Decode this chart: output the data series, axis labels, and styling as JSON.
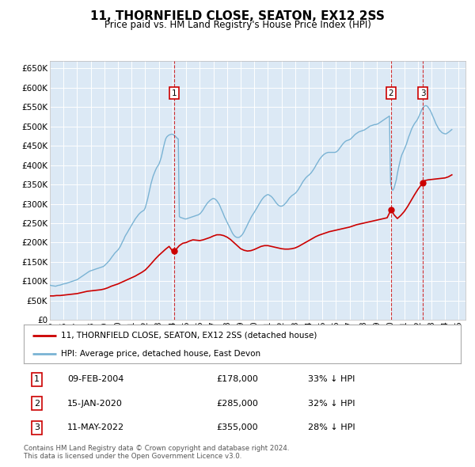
{
  "title": "11, THORNFIELD CLOSE, SEATON, EX12 2SS",
  "subtitle": "Price paid vs. HM Land Registry's House Price Index (HPI)",
  "background_color": "#ffffff",
  "plot_bg_color": "#dce9f5",
  "red_line_label": "11, THORNFIELD CLOSE, SEATON, EX12 2SS (detached house)",
  "blue_line_label": "HPI: Average price, detached house, East Devon",
  "footer": "Contains HM Land Registry data © Crown copyright and database right 2024.\nThis data is licensed under the Open Government Licence v3.0.",
  "transactions": [
    {
      "num": 1,
      "date": "09-FEB-2004",
      "price": "£178,000",
      "pct": "33% ↓ HPI",
      "year_x": 2004.11
    },
    {
      "num": 2,
      "date": "15-JAN-2020",
      "price": "£285,000",
      "pct": "32% ↓ HPI",
      "year_x": 2020.04
    },
    {
      "num": 3,
      "date": "11-MAY-2022",
      "price": "£355,000",
      "pct": "28% ↓ HPI",
      "year_x": 2022.37
    }
  ],
  "hpi_data": {
    "years": [
      1995.0,
      1995.08,
      1995.17,
      1995.25,
      1995.33,
      1995.42,
      1995.5,
      1995.58,
      1995.67,
      1995.75,
      1995.83,
      1995.92,
      1996.0,
      1996.08,
      1996.17,
      1996.25,
      1996.33,
      1996.42,
      1996.5,
      1996.58,
      1996.67,
      1996.75,
      1996.83,
      1996.92,
      1997.0,
      1997.08,
      1997.17,
      1997.25,
      1997.33,
      1997.42,
      1997.5,
      1997.58,
      1997.67,
      1997.75,
      1997.83,
      1997.92,
      1998.0,
      1998.08,
      1998.17,
      1998.25,
      1998.33,
      1998.42,
      1998.5,
      1998.58,
      1998.67,
      1998.75,
      1998.83,
      1998.92,
      1999.0,
      1999.08,
      1999.17,
      1999.25,
      1999.33,
      1999.42,
      1999.5,
      1999.58,
      1999.67,
      1999.75,
      1999.83,
      1999.92,
      2000.0,
      2000.08,
      2000.17,
      2000.25,
      2000.33,
      2000.42,
      2000.5,
      2000.58,
      2000.67,
      2000.75,
      2000.83,
      2000.92,
      2001.0,
      2001.08,
      2001.17,
      2001.25,
      2001.33,
      2001.42,
      2001.5,
      2001.58,
      2001.67,
      2001.75,
      2001.83,
      2001.92,
      2002.0,
      2002.08,
      2002.17,
      2002.25,
      2002.33,
      2002.42,
      2002.5,
      2002.58,
      2002.67,
      2002.75,
      2002.83,
      2002.92,
      2003.0,
      2003.08,
      2003.17,
      2003.25,
      2003.33,
      2003.42,
      2003.5,
      2003.58,
      2003.67,
      2003.75,
      2003.83,
      2003.92,
      2004.0,
      2004.08,
      2004.17,
      2004.25,
      2004.33,
      2004.42,
      2004.5,
      2004.58,
      2004.67,
      2004.75,
      2004.83,
      2004.92,
      2005.0,
      2005.08,
      2005.17,
      2005.25,
      2005.33,
      2005.42,
      2005.5,
      2005.58,
      2005.67,
      2005.75,
      2005.83,
      2005.92,
      2006.0,
      2006.08,
      2006.17,
      2006.25,
      2006.33,
      2006.42,
      2006.5,
      2006.58,
      2006.67,
      2006.75,
      2006.83,
      2006.92,
      2007.0,
      2007.08,
      2007.17,
      2007.25,
      2007.33,
      2007.42,
      2007.5,
      2007.58,
      2007.67,
      2007.75,
      2007.83,
      2007.92,
      2008.0,
      2008.08,
      2008.17,
      2008.25,
      2008.33,
      2008.42,
      2008.5,
      2008.58,
      2008.67,
      2008.75,
      2008.83,
      2008.92,
      2009.0,
      2009.08,
      2009.17,
      2009.25,
      2009.33,
      2009.42,
      2009.5,
      2009.58,
      2009.67,
      2009.75,
      2009.83,
      2009.92,
      2010.0,
      2010.08,
      2010.17,
      2010.25,
      2010.33,
      2010.42,
      2010.5,
      2010.58,
      2010.67,
      2010.75,
      2010.83,
      2010.92,
      2011.0,
      2011.08,
      2011.17,
      2011.25,
      2011.33,
      2011.42,
      2011.5,
      2011.58,
      2011.67,
      2011.75,
      2011.83,
      2011.92,
      2012.0,
      2012.08,
      2012.17,
      2012.25,
      2012.33,
      2012.42,
      2012.5,
      2012.58,
      2012.67,
      2012.75,
      2012.83,
      2012.92,
      2013.0,
      2013.08,
      2013.17,
      2013.25,
      2013.33,
      2013.42,
      2013.5,
      2013.58,
      2013.67,
      2013.75,
      2013.83,
      2013.92,
      2014.0,
      2014.08,
      2014.17,
      2014.25,
      2014.33,
      2014.42,
      2014.5,
      2014.58,
      2014.67,
      2014.75,
      2014.83,
      2014.92,
      2015.0,
      2015.08,
      2015.17,
      2015.25,
      2015.33,
      2015.42,
      2015.5,
      2015.58,
      2015.67,
      2015.75,
      2015.83,
      2015.92,
      2016.0,
      2016.08,
      2016.17,
      2016.25,
      2016.33,
      2016.42,
      2016.5,
      2016.58,
      2016.67,
      2016.75,
      2016.83,
      2016.92,
      2017.0,
      2017.08,
      2017.17,
      2017.25,
      2017.33,
      2017.42,
      2017.5,
      2017.58,
      2017.67,
      2017.75,
      2017.83,
      2017.92,
      2018.0,
      2018.08,
      2018.17,
      2018.25,
      2018.33,
      2018.42,
      2018.5,
      2018.58,
      2018.67,
      2018.75,
      2018.83,
      2018.92,
      2019.0,
      2019.08,
      2019.17,
      2019.25,
      2019.33,
      2019.42,
      2019.5,
      2019.58,
      2019.67,
      2019.75,
      2019.83,
      2019.92,
      2020.0,
      2020.08,
      2020.17,
      2020.25,
      2020.33,
      2020.42,
      2020.5,
      2020.58,
      2020.67,
      2020.75,
      2020.83,
      2020.92,
      2021.0,
      2021.08,
      2021.17,
      2021.25,
      2021.33,
      2021.42,
      2021.5,
      2021.58,
      2021.67,
      2021.75,
      2021.83,
      2021.92,
      2022.0,
      2022.08,
      2022.17,
      2022.25,
      2022.33,
      2022.42,
      2022.5,
      2022.58,
      2022.67,
      2022.75,
      2022.83,
      2022.92,
      2023.0,
      2023.08,
      2023.17,
      2023.25,
      2023.33,
      2023.42,
      2023.5,
      2023.58,
      2023.67,
      2023.75,
      2023.83,
      2023.92,
      2024.0,
      2024.08,
      2024.17,
      2024.25,
      2024.33,
      2024.42,
      2024.5
    ],
    "values": [
      90000,
      89000,
      88500,
      88000,
      87500,
      87000,
      88000,
      89000,
      89500,
      90000,
      91000,
      92000,
      93000,
      93500,
      94000,
      95000,
      96000,
      97000,
      98000,
      99000,
      100000,
      101000,
      102000,
      103000,
      104000,
      106000,
      108000,
      110000,
      112000,
      114000,
      116000,
      118000,
      120000,
      122000,
      124000,
      126000,
      127000,
      128000,
      129000,
      130000,
      131000,
      132000,
      133000,
      134000,
      135000,
      136000,
      137000,
      138000,
      140000,
      143000,
      146000,
      149000,
      152000,
      156000,
      160000,
      164000,
      168000,
      172000,
      175000,
      178000,
      181000,
      185000,
      190000,
      196000,
      202000,
      208000,
      215000,
      220000,
      225000,
      230000,
      235000,
      240000,
      245000,
      250000,
      255000,
      260000,
      264000,
      268000,
      272000,
      275000,
      278000,
      280000,
      282000,
      284000,
      290000,
      300000,
      312000,
      325000,
      338000,
      352000,
      362000,
      372000,
      380000,
      387000,
      393000,
      398000,
      402000,
      410000,
      420000,
      432000,
      445000,
      458000,
      468000,
      473000,
      476000,
      478000,
      479000,
      480000,
      480000,
      478000,
      476000,
      473000,
      470000,
      468000,
      267000,
      265000,
      264000,
      263000,
      262000,
      261000,
      261000,
      262000,
      263000,
      264000,
      265000,
      266000,
      267000,
      268000,
      269000,
      270000,
      271000,
      272000,
      274000,
      277000,
      281000,
      285000,
      290000,
      295000,
      299000,
      303000,
      306000,
      309000,
      311000,
      313000,
      314000,
      313000,
      311000,
      308000,
      304000,
      299000,
      293000,
      286000,
      279000,
      272000,
      265000,
      259000,
      253000,
      247000,
      241000,
      235000,
      229000,
      223000,
      219000,
      216000,
      214000,
      213000,
      213000,
      214000,
      216000,
      219000,
      223000,
      228000,
      234000,
      240000,
      246000,
      252000,
      258000,
      264000,
      269000,
      274000,
      278000,
      283000,
      288000,
      293000,
      298000,
      303000,
      308000,
      312000,
      316000,
      319000,
      321000,
      323000,
      324000,
      323000,
      321000,
      319000,
      316000,
      312000,
      308000,
      304000,
      300000,
      297000,
      295000,
      294000,
      294000,
      295000,
      297000,
      300000,
      303000,
      307000,
      311000,
      315000,
      318000,
      321000,
      323000,
      325000,
      327000,
      330000,
      334000,
      338000,
      343000,
      348000,
      353000,
      358000,
      362000,
      366000,
      369000,
      372000,
      374000,
      377000,
      380000,
      384000,
      388000,
      393000,
      398000,
      403000,
      408000,
      413000,
      417000,
      421000,
      424000,
      427000,
      429000,
      431000,
      432000,
      433000,
      433000,
      433000,
      433000,
      433000,
      433000,
      433000,
      434000,
      436000,
      439000,
      443000,
      447000,
      451000,
      455000,
      458000,
      461000,
      463000,
      464000,
      465000,
      466000,
      468000,
      471000,
      474000,
      477000,
      480000,
      482000,
      484000,
      486000,
      487000,
      488000,
      489000,
      490000,
      491000,
      493000,
      495000,
      497000,
      499000,
      501000,
      502000,
      503000,
      504000,
      505000,
      505000,
      506000,
      507000,
      509000,
      511000,
      513000,
      515000,
      517000,
      519000,
      521000,
      523000,
      525000,
      527000,
      355000,
      340000,
      335000,
      340000,
      350000,
      362000,
      378000,
      392000,
      406000,
      418000,
      427000,
      434000,
      440000,
      447000,
      455000,
      464000,
      473000,
      481000,
      489000,
      496000,
      502000,
      507000,
      511000,
      515000,
      520000,
      526000,
      533000,
      540000,
      546000,
      550000,
      553000,
      554000,
      553000,
      550000,
      546000,
      541000,
      535000,
      528000,
      521000,
      514000,
      507000,
      501000,
      496000,
      491000,
      488000,
      485000,
      483000,
      482000,
      481000,
      481000,
      483000,
      485000,
      487000,
      490000,
      492000
    ],
    "color": "#7ab3d4"
  },
  "price_data": {
    "years": [
      1995.0,
      1995.25,
      1995.5,
      1995.75,
      1996.0,
      1996.25,
      1996.5,
      1996.75,
      1997.0,
      1997.25,
      1997.5,
      1997.75,
      1998.0,
      1998.25,
      1998.5,
      1998.75,
      1999.0,
      1999.25,
      1999.5,
      1999.75,
      2000.0,
      2000.25,
      2000.5,
      2000.75,
      2001.0,
      2001.25,
      2001.5,
      2001.75,
      2002.0,
      2002.25,
      2002.5,
      2002.75,
      2003.0,
      2003.25,
      2003.5,
      2003.75,
      2004.0,
      2004.11,
      2004.25,
      2004.5,
      2004.75,
      2005.0,
      2005.25,
      2005.5,
      2005.75,
      2006.0,
      2006.25,
      2006.5,
      2006.75,
      2007.0,
      2007.25,
      2007.5,
      2007.75,
      2008.0,
      2008.25,
      2008.5,
      2008.75,
      2009.0,
      2009.25,
      2009.5,
      2009.75,
      2010.0,
      2010.25,
      2010.5,
      2010.75,
      2011.0,
      2011.25,
      2011.5,
      2011.75,
      2012.0,
      2012.25,
      2012.5,
      2012.75,
      2013.0,
      2013.25,
      2013.5,
      2013.75,
      2014.0,
      2014.25,
      2014.5,
      2014.75,
      2015.0,
      2015.25,
      2015.5,
      2015.75,
      2016.0,
      2016.25,
      2016.5,
      2016.75,
      2017.0,
      2017.25,
      2017.5,
      2017.75,
      2018.0,
      2018.25,
      2018.5,
      2018.75,
      2019.0,
      2019.25,
      2019.5,
      2019.75,
      2020.04,
      2020.25,
      2020.5,
      2020.75,
      2021.0,
      2021.25,
      2021.5,
      2021.75,
      2022.0,
      2022.37,
      2022.5,
      2022.75,
      2023.0,
      2023.25,
      2023.5,
      2023.75,
      2024.0,
      2024.25,
      2024.5
    ],
    "values": [
      62000,
      62000,
      63000,
      63000,
      64000,
      65000,
      66000,
      67000,
      68000,
      70000,
      72000,
      74000,
      75000,
      76000,
      77000,
      78000,
      80000,
      83000,
      87000,
      90000,
      93000,
      97000,
      101000,
      105000,
      109000,
      113000,
      118000,
      123000,
      129000,
      138000,
      148000,
      158000,
      167000,
      175000,
      183000,
      190000,
      178000,
      178000,
      182000,
      192000,
      198000,
      200000,
      204000,
      207000,
      206000,
      205000,
      207000,
      210000,
      213000,
      217000,
      220000,
      220000,
      218000,
      214000,
      208000,
      200000,
      192000,
      184000,
      180000,
      178000,
      179000,
      182000,
      186000,
      190000,
      192000,
      192000,
      190000,
      188000,
      186000,
      184000,
      183000,
      183000,
      184000,
      186000,
      190000,
      195000,
      200000,
      205000,
      210000,
      215000,
      219000,
      222000,
      225000,
      228000,
      230000,
      232000,
      234000,
      236000,
      238000,
      240000,
      243000,
      246000,
      248000,
      250000,
      252000,
      254000,
      256000,
      258000,
      260000,
      262000,
      264000,
      285000,
      272000,
      262000,
      270000,
      280000,
      293000,
      308000,
      323000,
      337000,
      355000,
      360000,
      362000,
      363000,
      364000,
      365000,
      366000,
      367000,
      370000,
      375000
    ],
    "color": "#cc0000"
  },
  "transaction_dots": [
    {
      "year": 2004.11,
      "value": 178000
    },
    {
      "year": 2020.04,
      "value": 285000
    },
    {
      "year": 2022.37,
      "value": 355000
    }
  ],
  "ylim": [
    0,
    670000
  ],
  "yticks": [
    0,
    50000,
    100000,
    150000,
    200000,
    250000,
    300000,
    350000,
    400000,
    450000,
    500000,
    550000,
    600000,
    650000
  ],
  "xlim": [
    1995,
    2025.5
  ],
  "xticks": [
    1995,
    1996,
    1997,
    1998,
    1999,
    2000,
    2001,
    2002,
    2003,
    2004,
    2005,
    2006,
    2007,
    2008,
    2009,
    2010,
    2011,
    2012,
    2013,
    2014,
    2015,
    2016,
    2017,
    2018,
    2019,
    2020,
    2021,
    2022,
    2023,
    2024,
    2025
  ]
}
